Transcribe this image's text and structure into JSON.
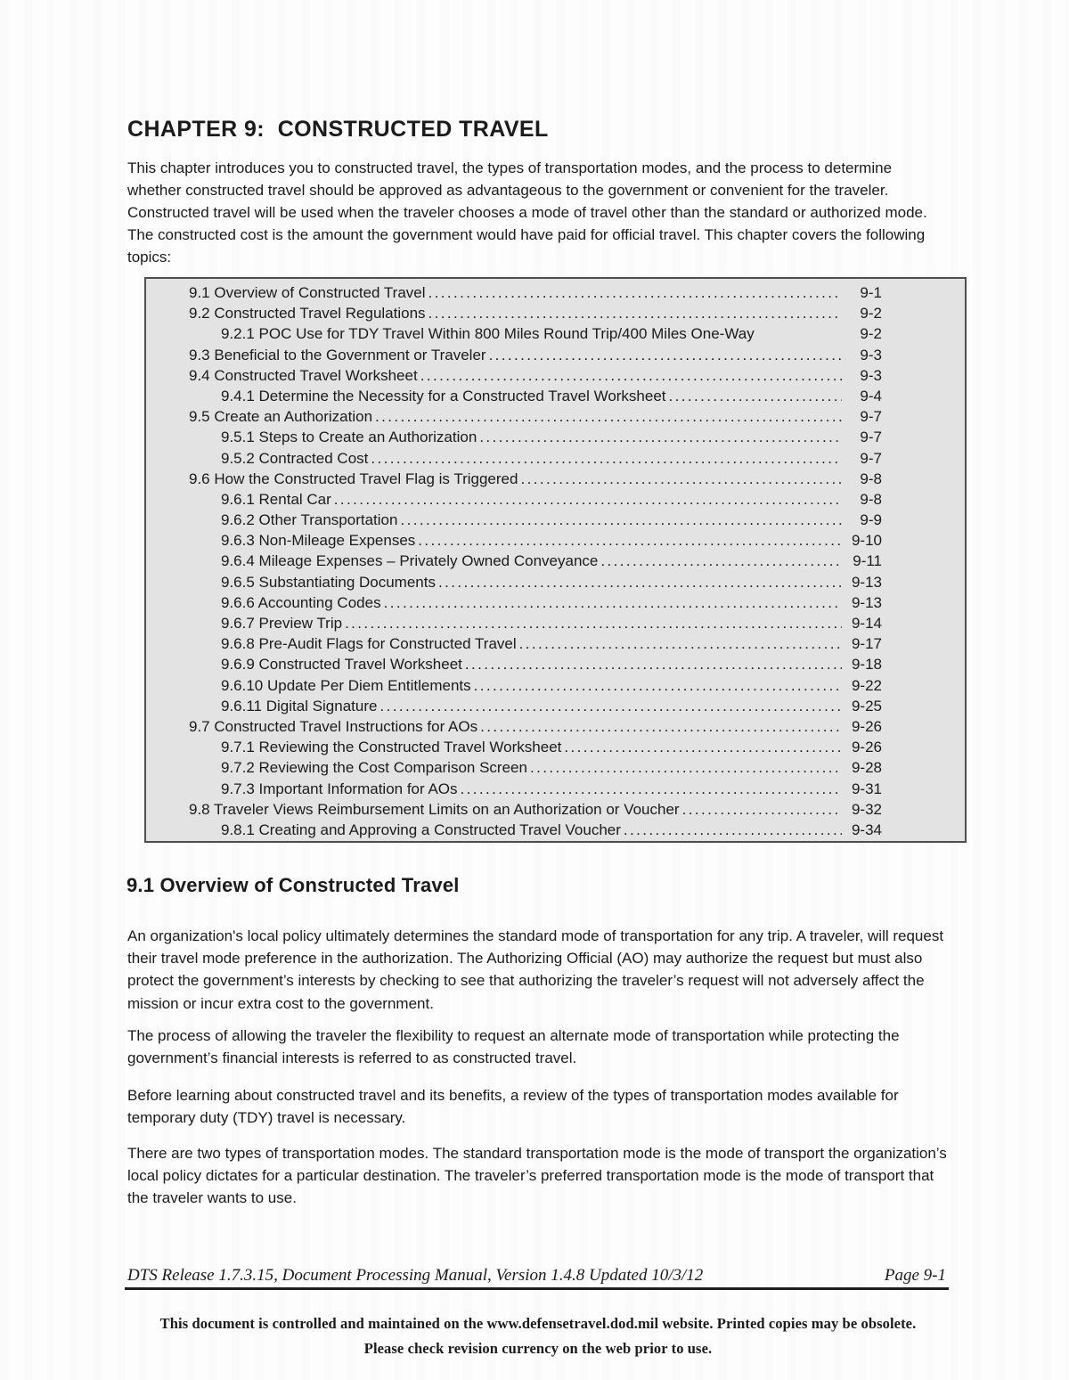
{
  "page": {
    "bg": "#fdfdfe",
    "text_color": "#1b1b1b"
  },
  "chapter": {
    "title": "CHAPTER 9:  CONSTRUCTED TRAVEL",
    "intro": "This chapter introduces you to constructed travel, the types of transportation modes, and the process to determine whether constructed travel should be approved as advantageous to the government or convenient for the traveler. Constructed travel will be used when the traveler chooses a mode of travel other than the standard or authorized mode. The constructed cost is the amount the government would have paid for official travel. This chapter covers the following topics:"
  },
  "toc": {
    "box_bg": "#e3e3e3",
    "box_border": "#4e4e4e",
    "entries": [
      {
        "label": "9.1 Overview of Constructed Travel",
        "page": "9-1",
        "level": 1,
        "dots": true
      },
      {
        "label": "9.2 Constructed Travel Regulations",
        "page": "9-2",
        "level": 1,
        "dots": true
      },
      {
        "label": "9.2.1 POC Use for TDY Travel Within 800 Miles Round Trip/400 Miles One-Way",
        "page": "9-2",
        "level": 2,
        "dots": false
      },
      {
        "label": "9.3 Beneficial to the Government or Traveler",
        "page": "9-3",
        "level": 1,
        "dots": true
      },
      {
        "label": "9.4 Constructed Travel Worksheet",
        "page": "9-3",
        "level": 1,
        "dots": true
      },
      {
        "label": "9.4.1 Determine the Necessity for a Constructed Travel Worksheet",
        "page": "9-4",
        "level": 2,
        "dots": true
      },
      {
        "label": "9.5 Create an Authorization",
        "page": "9-7",
        "level": 1,
        "dots": true
      },
      {
        "label": "9.5.1 Steps to Create an Authorization",
        "page": "9-7",
        "level": 2,
        "dots": true
      },
      {
        "label": "9.5.2 Contracted Cost",
        "page": "9-7",
        "level": 2,
        "dots": true
      },
      {
        "label": "9.6 How the Constructed Travel Flag is Triggered",
        "page": "9-8",
        "level": 1,
        "dots": true
      },
      {
        "label": "9.6.1 Rental Car ",
        "page": "9-8",
        "level": 2,
        "dots": true
      },
      {
        "label": "9.6.2 Other Transportation ",
        "page": "9-9",
        "level": 2,
        "dots": true
      },
      {
        "label": "9.6.3 Non-Mileage Expenses",
        "page": "9-10",
        "level": 2,
        "dots": true
      },
      {
        "label": "9.6.4 Mileage Expenses – Privately Owned Conveyance",
        "page": "9-11",
        "level": 2,
        "dots": true
      },
      {
        "label": "9.6.5 Substantiating Documents",
        "page": "9-13",
        "level": 2,
        "dots": true
      },
      {
        "label": "9.6.6 Accounting Codes ",
        "page": "9-13",
        "level": 2,
        "dots": true
      },
      {
        "label": "9.6.7 Preview Trip ",
        "page": "9-14",
        "level": 2,
        "dots": true
      },
      {
        "label": "9.6.8 Pre-Audit Flags for Constructed Travel",
        "page": "9-17",
        "level": 2,
        "dots": true
      },
      {
        "label": "9.6.9 Constructed Travel Worksheet",
        "page": "9-18",
        "level": 2,
        "dots": true
      },
      {
        "label": "9.6.10 Update Per Diem Entitlements",
        "page": "9-22",
        "level": 2,
        "dots": true
      },
      {
        "label": "9.6.11 Digital Signature ",
        "page": "9-25",
        "level": 2,
        "dots": true
      },
      {
        "label": "9.7 Constructed Travel Instructions for AOs",
        "page": "9-26",
        "level": 1,
        "dots": true
      },
      {
        "label": "9.7.1 Reviewing the Constructed Travel Worksheet",
        "page": "9-26",
        "level": 2,
        "dots": true
      },
      {
        "label": "9.7.2 Reviewing the Cost Comparison Screen",
        "page": "9-28",
        "level": 2,
        "dots": true
      },
      {
        "label": "9.7.3 Important Information for AOs",
        "page": "9-31",
        "level": 2,
        "dots": true
      },
      {
        "label": "9.8 Traveler Views Reimbursement Limits on an Authorization or Voucher ",
        "page": "9-32",
        "level": 1,
        "dots": true
      },
      {
        "label": "9.8.1 Creating and Approving a Constructed Travel Voucher",
        "page": "9-34",
        "level": 2,
        "dots": true
      }
    ]
  },
  "section": {
    "heading": "9.1 Overview of Constructed Travel",
    "paragraphs": [
      "An organization's local policy ultimately determines the standard mode of transportation for any trip. A traveler, will request their travel mode preference in the authorization. The Authorizing Official (AO) may authorize the request but must also protect the government’s interests by checking to see that authorizing the traveler’s request will not adversely affect the mission or incur extra cost to the government.",
      "The process of allowing the traveler the flexibility to request an alternate mode of transportation while protecting the government’s financial interests is referred to as constructed travel.",
      "Before learning about constructed travel and its benefits, a review of the types of transportation modes available for temporary duty (TDY) travel is necessary.",
      "There are two types of transportation modes. The standard transportation mode is the mode of transport the organization’s local policy dictates for a particular destination. The traveler’s preferred transportation mode is the mode of transport that the traveler wants to use."
    ]
  },
  "footer": {
    "release_line": "DTS Release 1.7.3.15, Document Processing Manual, Version 1.4.8 Updated 10/3/12",
    "page_label": "Page 9-1",
    "notice_line1": "This document is controlled and maintained on the www.defensetravel.dod.mil website. Printed copies may be obsolete.",
    "notice_line2": "Please check revision currency on the web prior to use."
  }
}
